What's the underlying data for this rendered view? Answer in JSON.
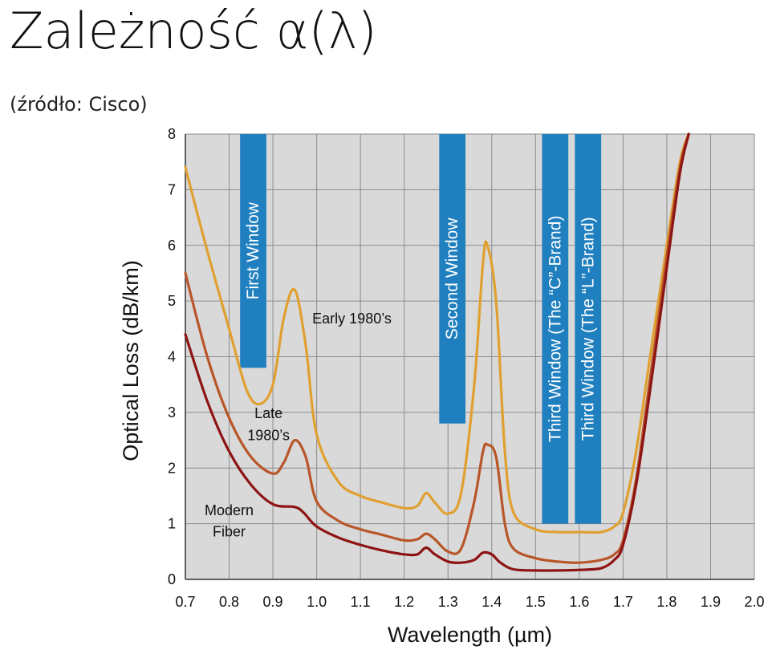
{
  "page": {
    "title": "Zależność α(λ)",
    "source": "(źródło: Cisco)"
  },
  "chart_data": {
    "type": "line",
    "xlabel": "Wavelength (µm)",
    "ylabel": "Optical Loss (dB/km)",
    "xlim": [
      0.7,
      2.0
    ],
    "ylim": [
      0,
      8
    ],
    "x_ticks": [
      "0.7",
      "0.8",
      "0.9",
      "1.0",
      "1.1",
      "1.2",
      "1.3",
      "1.4",
      "1.5",
      "1.6",
      "1.7",
      "1.8",
      "1.9",
      "2.0"
    ],
    "y_ticks": [
      "0",
      "1",
      "2",
      "3",
      "4",
      "5",
      "6",
      "7",
      "8"
    ],
    "grid": true,
    "colors": {
      "plot_bg": "#d9d9d9",
      "grid": "#8c8c8c",
      "band": "#1f7fbf",
      "early": "#e0a030",
      "late": "#b8562a",
      "modern": "#8e1414"
    },
    "bands": [
      {
        "label": "First Window",
        "x_range": [
          0.825,
          0.885
        ],
        "y_range": [
          3.8,
          8.0
        ]
      },
      {
        "label": "Second Window",
        "x_range": [
          1.28,
          1.34
        ],
        "y_range": [
          2.8,
          8.0
        ]
      },
      {
        "label": "Third Window (The “C”-Brand)",
        "x_range": [
          1.515,
          1.575
        ],
        "y_range": [
          1.0,
          8.0
        ]
      },
      {
        "label": "Third Window (The “L”-Brand)",
        "x_range": [
          1.59,
          1.65
        ],
        "y_range": [
          1.0,
          8.0
        ]
      }
    ],
    "series": [
      {
        "name": "Early 1980's",
        "x": [
          0.7,
          0.75,
          0.8,
          0.84,
          0.87,
          0.9,
          0.925,
          0.95,
          0.975,
          1.0,
          1.05,
          1.1,
          1.15,
          1.2,
          1.23,
          1.25,
          1.27,
          1.3,
          1.33,
          1.36,
          1.38,
          1.39,
          1.41,
          1.43,
          1.45,
          1.5,
          1.55,
          1.6,
          1.65,
          1.68,
          1.7,
          1.73,
          1.76,
          1.8,
          1.83,
          1.85
        ],
        "y": [
          7.4,
          5.9,
          4.5,
          3.4,
          3.15,
          3.5,
          4.7,
          5.2,
          4.2,
          2.6,
          1.75,
          1.5,
          1.38,
          1.28,
          1.32,
          1.55,
          1.38,
          1.18,
          1.55,
          3.5,
          5.7,
          6.0,
          5.0,
          2.3,
          1.2,
          0.9,
          0.85,
          0.85,
          0.85,
          0.95,
          1.2,
          2.3,
          3.9,
          6.0,
          7.5,
          8.0
        ]
      },
      {
        "name": "Late 1980's",
        "x": [
          0.7,
          0.75,
          0.8,
          0.85,
          0.9,
          0.925,
          0.95,
          0.975,
          1.0,
          1.05,
          1.1,
          1.15,
          1.2,
          1.23,
          1.25,
          1.27,
          1.3,
          1.33,
          1.36,
          1.38,
          1.39,
          1.41,
          1.43,
          1.45,
          1.5,
          1.55,
          1.6,
          1.65,
          1.68,
          1.7,
          1.73,
          1.76,
          1.8,
          1.83,
          1.85
        ],
        "y": [
          5.5,
          4.0,
          2.9,
          2.2,
          1.9,
          2.1,
          2.5,
          2.2,
          1.4,
          1.05,
          0.9,
          0.8,
          0.7,
          0.72,
          0.82,
          0.72,
          0.5,
          0.55,
          1.4,
          2.3,
          2.42,
          2.2,
          1.0,
          0.55,
          0.38,
          0.32,
          0.3,
          0.35,
          0.45,
          0.7,
          1.8,
          3.5,
          5.8,
          7.4,
          8.0
        ]
      },
      {
        "name": "Modern Fiber",
        "x": [
          0.7,
          0.75,
          0.8,
          0.85,
          0.9,
          0.95,
          0.97,
          1.0,
          1.05,
          1.1,
          1.15,
          1.2,
          1.23,
          1.25,
          1.27,
          1.3,
          1.33,
          1.36,
          1.38,
          1.4,
          1.42,
          1.45,
          1.5,
          1.55,
          1.6,
          1.65,
          1.68,
          1.7,
          1.73,
          1.76,
          1.8,
          1.83,
          1.85
        ],
        "y": [
          4.4,
          3.2,
          2.3,
          1.7,
          1.35,
          1.3,
          1.2,
          0.95,
          0.75,
          0.62,
          0.52,
          0.45,
          0.45,
          0.57,
          0.45,
          0.32,
          0.3,
          0.35,
          0.48,
          0.45,
          0.3,
          0.18,
          0.16,
          0.16,
          0.17,
          0.2,
          0.35,
          0.62,
          1.7,
          3.3,
          5.6,
          7.3,
          8.0
        ]
      }
    ],
    "annotations": {
      "early": "Early 1980’s",
      "late_1": "Late",
      "late_2": "1980’s",
      "modern_1": "Modern",
      "modern_2": "Fiber"
    }
  }
}
